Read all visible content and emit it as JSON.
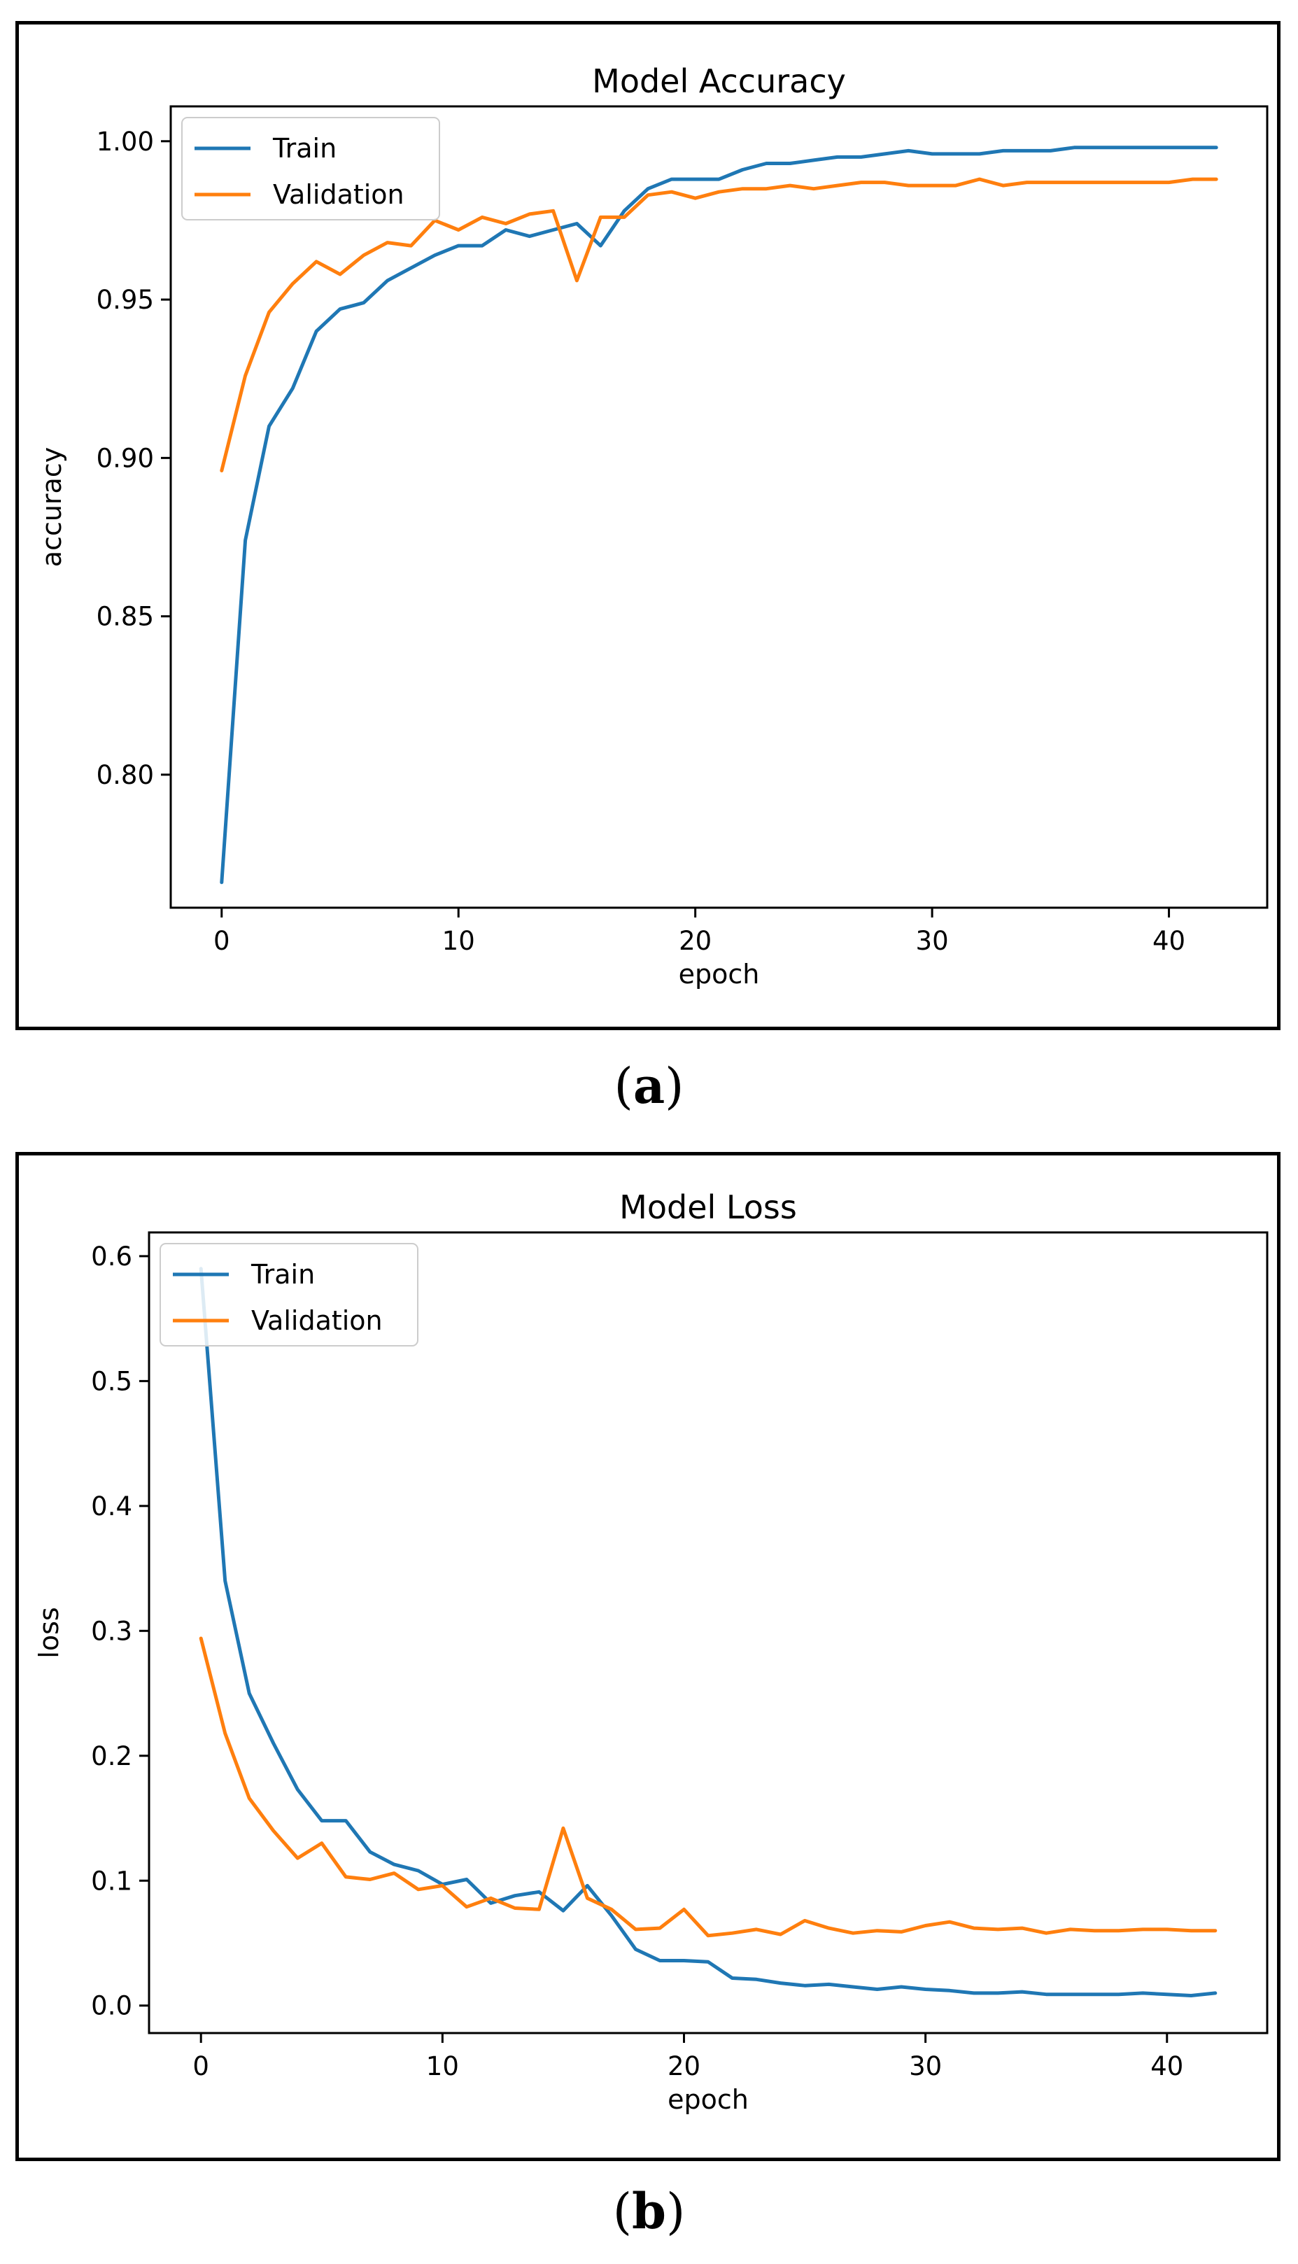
{
  "chart_data": [
    {
      "type": "line",
      "title": "Model Accuracy",
      "xlabel": "epoch",
      "ylabel": "accuracy",
      "xlim": [
        -2.15,
        44.15
      ],
      "ylim": [
        0.758,
        1.011
      ],
      "xticks": [
        0,
        10,
        20,
        30,
        40
      ],
      "yticks": [
        0.8,
        0.85,
        0.9,
        0.95,
        1.0
      ],
      "ytick_labels": [
        "0.80",
        "0.85",
        "0.90",
        "0.95",
        "1.00"
      ],
      "legend_position": "upper-left",
      "grid": false,
      "x": [
        0,
        1,
        2,
        3,
        4,
        5,
        6,
        7,
        8,
        9,
        10,
        11,
        12,
        13,
        14,
        15,
        16,
        17,
        18,
        19,
        20,
        21,
        22,
        23,
        24,
        25,
        26,
        27,
        28,
        29,
        30,
        31,
        32,
        33,
        34,
        35,
        36,
        37,
        38,
        39,
        40,
        41,
        42
      ],
      "series": [
        {
          "name": "Train",
          "color": "#1f77b4",
          "values": [
            0.766,
            0.874,
            0.91,
            0.922,
            0.94,
            0.947,
            0.949,
            0.956,
            0.96,
            0.964,
            0.967,
            0.967,
            0.972,
            0.97,
            0.972,
            0.974,
            0.967,
            0.978,
            0.985,
            0.988,
            0.988,
            0.988,
            0.991,
            0.993,
            0.993,
            0.994,
            0.995,
            0.995,
            0.996,
            0.997,
            0.996,
            0.996,
            0.996,
            0.997,
            0.997,
            0.997,
            0.998,
            0.998,
            0.998,
            0.998,
            0.998,
            0.998,
            0.998
          ]
        },
        {
          "name": "Validation",
          "color": "#ff7f0e",
          "values": [
            0.896,
            0.926,
            0.946,
            0.955,
            0.962,
            0.958,
            0.964,
            0.968,
            0.967,
            0.975,
            0.972,
            0.976,
            0.974,
            0.977,
            0.978,
            0.956,
            0.976,
            0.976,
            0.983,
            0.984,
            0.982,
            0.984,
            0.985,
            0.985,
            0.986,
            0.985,
            0.986,
            0.987,
            0.987,
            0.986,
            0.986,
            0.986,
            0.988,
            0.986,
            0.987,
            0.987,
            0.987,
            0.987,
            0.987,
            0.987,
            0.987,
            0.988,
            0.988
          ]
        }
      ],
      "caption_label": "a"
    },
    {
      "type": "line",
      "title": "Model Loss",
      "xlabel": "epoch",
      "ylabel": "loss",
      "xlim": [
        -2.15,
        44.15
      ],
      "ylim": [
        -0.022,
        0.619
      ],
      "xticks": [
        0,
        10,
        20,
        30,
        40
      ],
      "yticks": [
        0.0,
        0.1,
        0.2,
        0.3,
        0.4,
        0.5,
        0.6
      ],
      "ytick_labels": [
        "0.0",
        "0.1",
        "0.2",
        "0.3",
        "0.4",
        "0.5",
        "0.6"
      ],
      "legend_position": "upper-left",
      "grid": false,
      "x": [
        0,
        1,
        2,
        3,
        4,
        5,
        6,
        7,
        8,
        9,
        10,
        11,
        12,
        13,
        14,
        15,
        16,
        17,
        18,
        19,
        20,
        21,
        22,
        23,
        24,
        25,
        26,
        27,
        28,
        29,
        30,
        31,
        32,
        33,
        34,
        35,
        36,
        37,
        38,
        39,
        40,
        41,
        42
      ],
      "series": [
        {
          "name": "Train",
          "color": "#1f77b4",
          "values": [
            0.59,
            0.34,
            0.25,
            0.21,
            0.173,
            0.148,
            0.148,
            0.123,
            0.113,
            0.108,
            0.097,
            0.101,
            0.082,
            0.088,
            0.091,
            0.076,
            0.096,
            0.072,
            0.045,
            0.036,
            0.036,
            0.035,
            0.022,
            0.021,
            0.018,
            0.016,
            0.017,
            0.015,
            0.013,
            0.015,
            0.013,
            0.012,
            0.01,
            0.01,
            0.011,
            0.009,
            0.009,
            0.009,
            0.009,
            0.01,
            0.009,
            0.008,
            0.01
          ]
        },
        {
          "name": "Validation",
          "color": "#ff7f0e",
          "values": [
            0.294,
            0.218,
            0.166,
            0.14,
            0.118,
            0.13,
            0.103,
            0.101,
            0.106,
            0.093,
            0.096,
            0.079,
            0.086,
            0.078,
            0.077,
            0.142,
            0.086,
            0.077,
            0.061,
            0.062,
            0.077,
            0.056,
            0.058,
            0.061,
            0.057,
            0.068,
            0.062,
            0.058,
            0.06,
            0.059,
            0.064,
            0.067,
            0.062,
            0.061,
            0.062,
            0.058,
            0.061,
            0.06,
            0.06,
            0.061,
            0.061,
            0.06,
            0.06
          ]
        }
      ],
      "caption_label": "b"
    }
  ]
}
